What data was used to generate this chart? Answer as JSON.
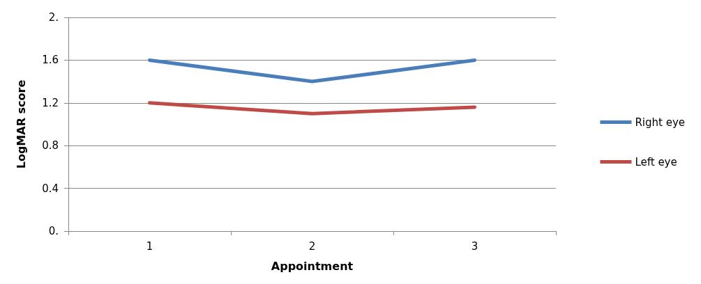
{
  "chart_data": {
    "type": "line",
    "xlabel": "Appointment",
    "ylabel": "LogMAR score",
    "categories": [
      "1",
      "2",
      "3"
    ],
    "series": [
      {
        "name": "Right eye",
        "color": "#4a7ebb",
        "values": [
          1.6,
          1.4,
          1.6
        ]
      },
      {
        "name": "Left eye",
        "color": "#be4b48",
        "values": [
          1.2,
          1.1,
          1.16
        ]
      }
    ],
    "ylim": [
      0,
      2
    ],
    "yticks": [
      {
        "value": 0,
        "label": "0."
      },
      0.4,
      0.8,
      1.2,
      1.6,
      {
        "value": 2,
        "label": "2."
      }
    ],
    "grid": "y",
    "legend": "right",
    "marker": "none",
    "line_style": "solid"
  }
}
